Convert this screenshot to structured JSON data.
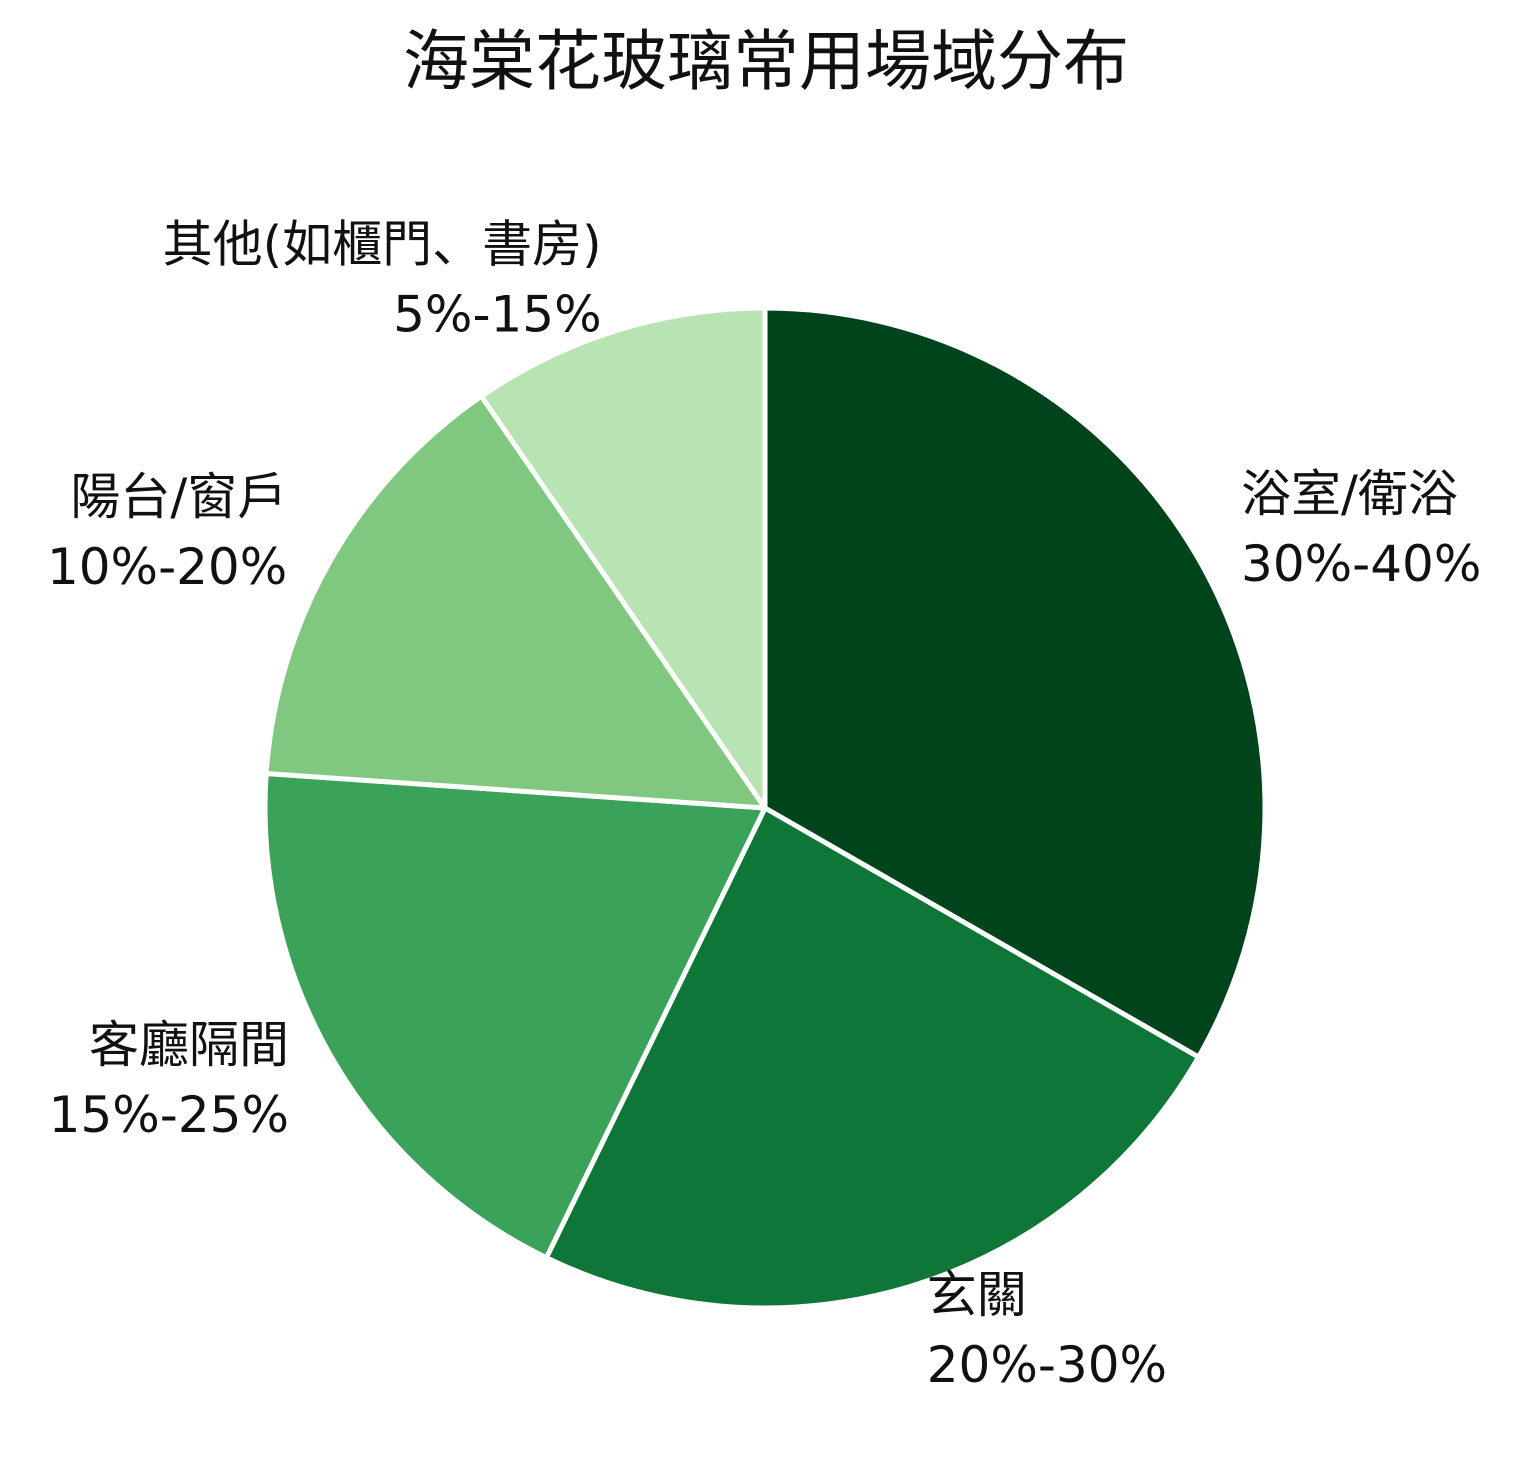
{
  "chart_data": {
    "type": "pie",
    "title": "海棠花玻璃常用場域分布",
    "categories": [
      "浴室/衛浴",
      "玄關",
      "客廳隔間",
      "陽台/窗戶",
      "其他(如櫃門、書房)"
    ],
    "ranges": [
      "30%-40%",
      "20%-30%",
      "15%-25%",
      "10%-20%",
      "5%-15%"
    ],
    "values": [
      33.3,
      23.9,
      18.9,
      14.3,
      9.6
    ],
    "colors": [
      "#00441b",
      "#0e7636",
      "#3ba25a",
      "#80c77f",
      "#b8e3b2"
    ]
  }
}
